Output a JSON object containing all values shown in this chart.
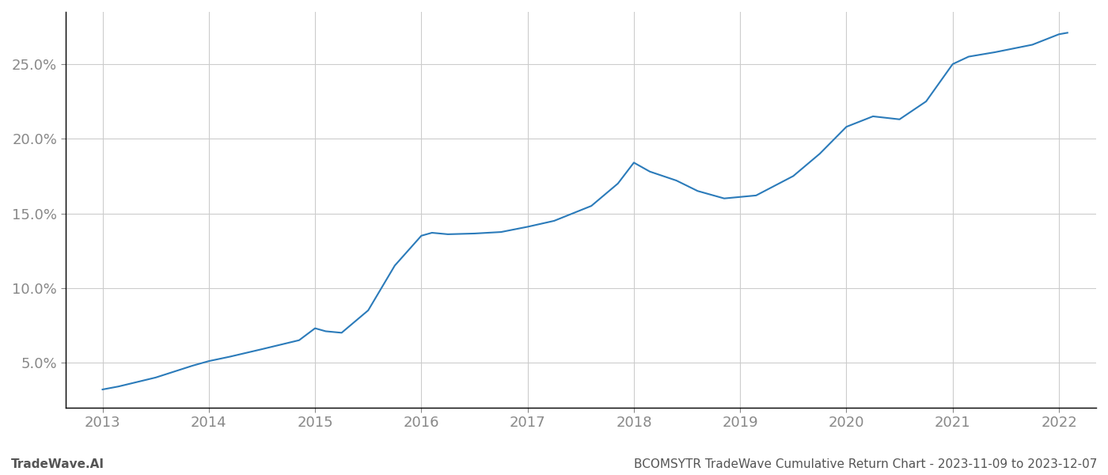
{
  "x_years": [
    2013.0,
    2013.15,
    2013.5,
    2013.85,
    2014.0,
    2014.2,
    2014.5,
    2014.85,
    2015.0,
    2015.1,
    2015.25,
    2015.5,
    2015.75,
    2016.0,
    2016.1,
    2016.25,
    2016.5,
    2016.75,
    2017.0,
    2017.25,
    2017.6,
    2017.85,
    2018.0,
    2018.15,
    2018.4,
    2018.6,
    2018.85,
    2019.0,
    2019.15,
    2019.5,
    2019.75,
    2020.0,
    2020.25,
    2020.5,
    2020.75,
    2021.0,
    2021.15,
    2021.4,
    2021.75,
    2022.0,
    2022.08
  ],
  "y_values": [
    3.2,
    3.4,
    4.0,
    4.8,
    5.1,
    5.4,
    5.9,
    6.5,
    7.3,
    7.1,
    7.0,
    8.5,
    11.5,
    13.5,
    13.7,
    13.6,
    13.65,
    13.75,
    14.1,
    14.5,
    15.5,
    17.0,
    18.4,
    17.8,
    17.2,
    16.5,
    16.0,
    16.1,
    16.2,
    17.5,
    19.0,
    20.8,
    21.5,
    21.3,
    22.5,
    25.0,
    25.5,
    25.8,
    26.3,
    27.0,
    27.1
  ],
  "line_color": "#2b7bba",
  "line_width": 1.5,
  "bg_color": "#ffffff",
  "grid_color": "#cccccc",
  "text_color": "#888888",
  "footer_text_color": "#555555",
  "xlim": [
    2012.65,
    2022.35
  ],
  "ylim": [
    2.0,
    28.5
  ],
  "yticks": [
    5.0,
    10.0,
    15.0,
    20.0,
    25.0
  ],
  "xticks": [
    2013,
    2014,
    2015,
    2016,
    2017,
    2018,
    2019,
    2020,
    2021,
    2022
  ],
  "footer_left": "TradeWave.AI",
  "footer_right": "BCOMSYTR TradeWave Cumulative Return Chart - 2023-11-09 to 2023-12-07",
  "tick_fontsize": 13,
  "footer_fontsize": 11,
  "left_spine_color": "#000000",
  "bottom_spine_color": "#000000"
}
